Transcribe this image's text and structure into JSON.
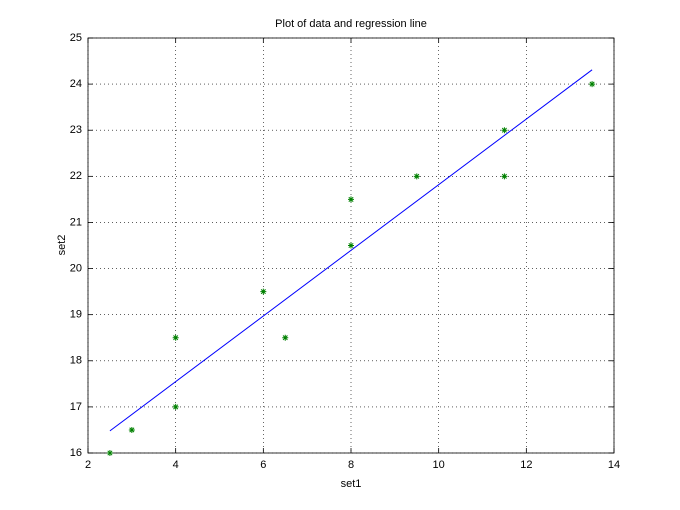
{
  "chart_data": {
    "type": "scatter",
    "title": "Plot of data and regression line",
    "x_label": "set1",
    "y_label": "set2",
    "xlim": [
      2,
      14
    ],
    "xticks": [
      2,
      4,
      6,
      8,
      10,
      12,
      14
    ],
    "ylim": [
      16,
      25
    ],
    "yticks": [
      16,
      17,
      18,
      19,
      20,
      21,
      22,
      23,
      24,
      25
    ],
    "grid": true,
    "series": [
      {
        "type": "scatter",
        "marker": "asterisk",
        "color": "#008000",
        "x": [
          2.5,
          3,
          4,
          4,
          6,
          6.5,
          8,
          8,
          9.5,
          11.5,
          11.5,
          13.5
        ],
        "values": [
          16,
          16.5,
          17,
          18.5,
          19.5,
          18.5,
          20.5,
          21.5,
          22,
          22,
          23,
          24
        ]
      },
      {
        "type": "line",
        "color": "#0000ff",
        "x": [
          2.5,
          13.5
        ],
        "values": [
          16.48,
          24.31
        ]
      }
    ]
  }
}
